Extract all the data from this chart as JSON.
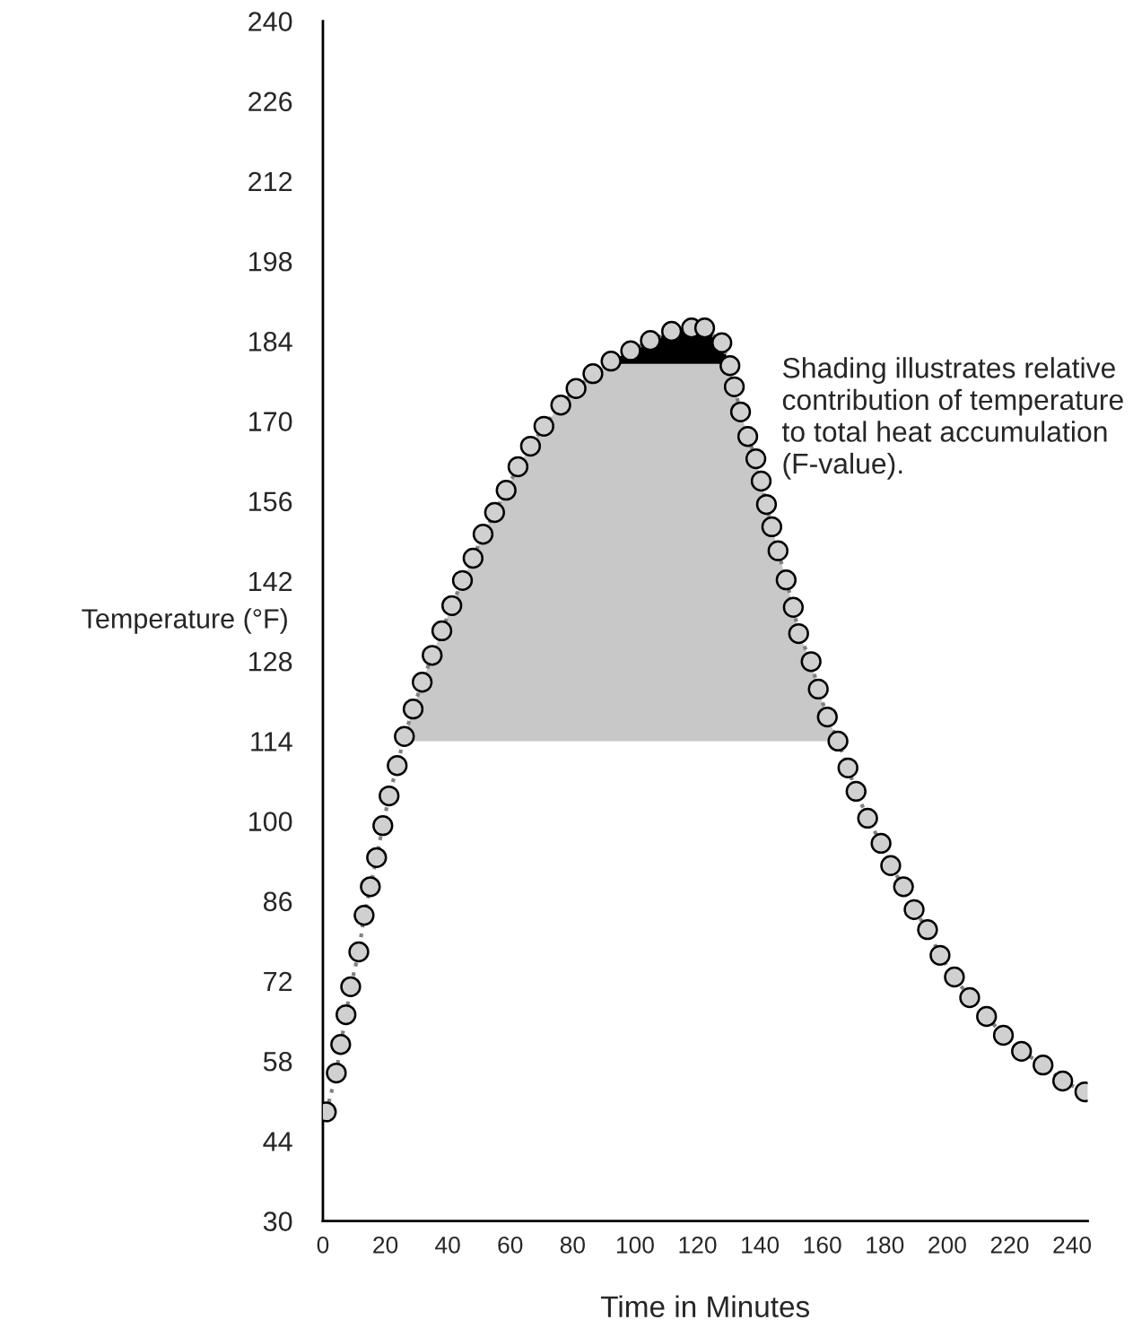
{
  "chart_data": {
    "type": "line",
    "xlabel": "Time in Minutes",
    "ylabel": "Temperature (°F)",
    "xlim": [
      0,
      245
    ],
    "ylim": [
      30,
      240
    ],
    "xticks": [
      0,
      20,
      40,
      60,
      80,
      100,
      120,
      140,
      160,
      180,
      200,
      220,
      240
    ],
    "yticks": [
      30,
      44,
      58,
      72,
      86,
      100,
      114,
      128,
      142,
      156,
      170,
      184,
      198,
      212,
      226,
      240
    ],
    "grid": false,
    "marker": "circle",
    "line_style": "dotted",
    "annotations": [
      "Shading illustrates relative\ncontribution of temperature\nto total heat accumulation\n(F-value)."
    ],
    "bands": [
      {
        "axis": "y",
        "from": 114,
        "to": 180,
        "color": "#c8c8c8"
      },
      {
        "axis": "y",
        "from": 180,
        "to": 186.3,
        "color": "#000000"
      }
    ],
    "series": [
      {
        "color": "#808080",
        "x": [
          1.1,
          4.3,
          5.7,
          7.4,
          8.9,
          11.5,
          13.2,
          15.2,
          17.2,
          19.2,
          21.2,
          23.8,
          26.1,
          28.9,
          31.8,
          35.0,
          38.1,
          41.3,
          44.7,
          48.1,
          51.3,
          55.0,
          58.7,
          62.5,
          66.5,
          70.8,
          76.2,
          81.1,
          86.5,
          92.3,
          98.6,
          104.9,
          111.7,
          118.1,
          122.3,
          127.8,
          130.4,
          131.8,
          133.8,
          136.1,
          138.7,
          140.4,
          142.1,
          143.8,
          145.8,
          148.4,
          150.7,
          152.4,
          156.4,
          158.7,
          161.6,
          165.0,
          168.2,
          170.8,
          174.5,
          178.8,
          181.9,
          186.0,
          189.4,
          193.7,
          197.7,
          202.3,
          207.2,
          212.6,
          218.0,
          223.8,
          230.7,
          237.0,
          244.1
        ],
        "values": [
          49.1,
          55.9,
          60.9,
          66.1,
          71.0,
          77.1,
          83.5,
          88.5,
          93.6,
          99.2,
          104.4,
          109.7,
          114.8,
          119.6,
          124.3,
          129.0,
          133.3,
          137.7,
          142.1,
          146.0,
          150.2,
          154.0,
          157.9,
          162.0,
          165.6,
          169.1,
          172.8,
          175.7,
          178.3,
          180.5,
          182.3,
          184.1,
          185.7,
          186.3,
          186.3,
          183.7,
          179.7,
          176.0,
          171.6,
          167.3,
          163.4,
          159.5,
          155.4,
          151.5,
          147.3,
          142.2,
          137.4,
          132.8,
          127.9,
          123.1,
          118.2,
          114.0,
          109.3,
          105.2,
          100.5,
          96.1,
          92.2,
          88.5,
          84.5,
          81.0,
          76.5,
          72.7,
          69.1,
          65.8,
          62.5,
          59.7,
          57.3,
          54.5,
          52.6
        ]
      }
    ]
  }
}
